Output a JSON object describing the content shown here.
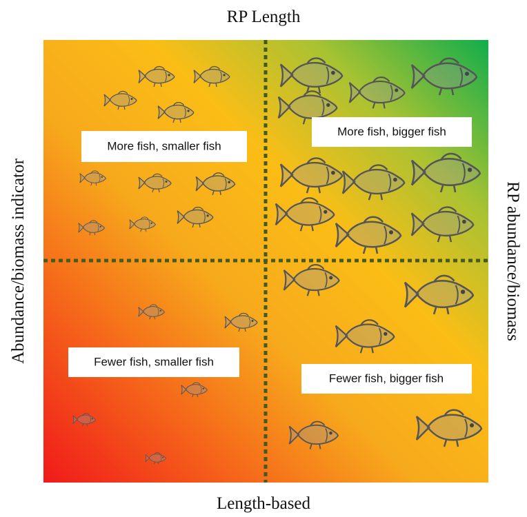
{
  "top_label": "RP Length",
  "bottom_label": "Length-based",
  "left_label": "Abundance/biomass indicator",
  "right_label": "RP abundance/biomass",
  "quadrants": [
    {
      "label": "More fish, smaller fish"
    },
    {
      "label": "More fish, bigger fish"
    },
    {
      "label": "Fewer fish, smaller fish"
    },
    {
      "label": "Fewer fish, bigger fish"
    }
  ]
}
